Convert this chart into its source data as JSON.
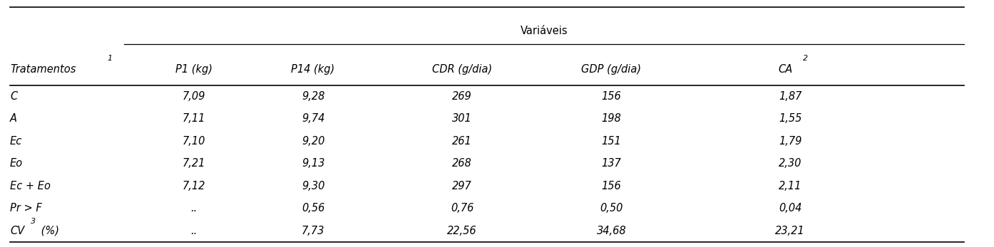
{
  "title_row": "Variáveis",
  "col_headers": [
    "P1 (kg)",
    "P14 (kg)",
    "CDR (g/dia)",
    "GDP (g/dia)",
    "CA"
  ],
  "row_label_header": "Tratamentos",
  "rows": [
    [
      "C",
      "7,09",
      "9,28",
      "269",
      "156",
      "1,87"
    ],
    [
      "A",
      "7,11",
      "9,74",
      "301",
      "198",
      "1,55"
    ],
    [
      "Ec",
      "7,10",
      "9,20",
      "261",
      "151",
      "1,79"
    ],
    [
      "Eo",
      "7,21",
      "9,13",
      "268",
      "137",
      "2,30"
    ],
    [
      "Ec + Eo",
      "7,12",
      "9,30",
      "297",
      "156",
      "2,11"
    ],
    [
      "Pr > F",
      "..",
      "0,56",
      "0,76",
      "0,50",
      "0,04"
    ],
    [
      "CV (%)",
      "..",
      "7,73",
      "22,56",
      "34,68",
      "23,21"
    ]
  ],
  "background_color": "#ffffff",
  "line_color": "#000000",
  "text_color": "#000000",
  "font_size": 10.5,
  "figsize": [
    13.94,
    3.47
  ],
  "dpi": 100
}
